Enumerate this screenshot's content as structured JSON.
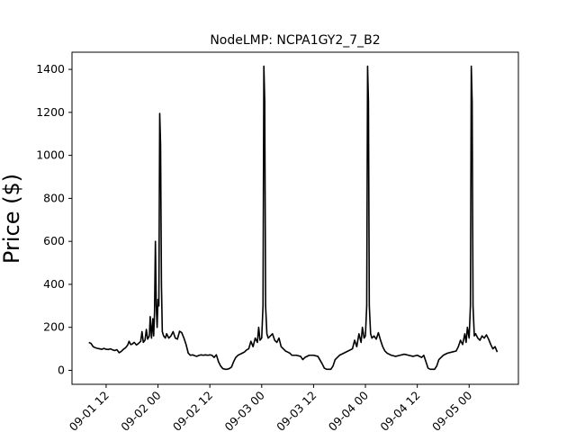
{
  "chart_data": {
    "type": "line",
    "title": "NodeLMP: NCPA1GY2_7_B2",
    "xlabel": "",
    "ylabel": "Price ($)",
    "ylim": [
      -65,
      1480
    ],
    "yticks": [
      0,
      200,
      400,
      600,
      800,
      1000,
      1200,
      1400
    ],
    "xticks": [
      {
        "t": 12,
        "label": "09-01 12"
      },
      {
        "t": 24,
        "label": "09-02 00"
      },
      {
        "t": 36,
        "label": "09-02 12"
      },
      {
        "t": 48,
        "label": "09-03 00"
      },
      {
        "t": 60,
        "label": "09-03 12"
      },
      {
        "t": 72,
        "label": "09-04 00"
      },
      {
        "t": 84,
        "label": "09-04 12"
      },
      {
        "t": 96,
        "label": "09-05 00"
      }
    ],
    "xlim": [
      4.1,
      107.4
    ],
    "line_color": "#000000",
    "grid": false,
    "series": [
      {
        "name": "",
        "points": [
          [
            8.0,
            130
          ],
          [
            8.5,
            125
          ],
          [
            9.0,
            110
          ],
          [
            9.5,
            105
          ],
          [
            10.0,
            102
          ],
          [
            10.5,
            100
          ],
          [
            11.0,
            98
          ],
          [
            11.5,
            102
          ],
          [
            12.0,
            98
          ],
          [
            12.5,
            97
          ],
          [
            13.0,
            100
          ],
          [
            13.5,
            95
          ],
          [
            14.0,
            92
          ],
          [
            14.5,
            96
          ],
          [
            15.0,
            82
          ],
          [
            15.5,
            88
          ],
          [
            16.0,
            98
          ],
          [
            16.5,
            105
          ],
          [
            17.0,
            118
          ],
          [
            17.3,
            135
          ],
          [
            17.7,
            120
          ],
          [
            18.0,
            122
          ],
          [
            18.5,
            130
          ],
          [
            19.0,
            118
          ],
          [
            19.5,
            125
          ],
          [
            20.0,
            135
          ],
          [
            20.3,
            180
          ],
          [
            20.6,
            130
          ],
          [
            21.0,
            140
          ],
          [
            21.3,
            190
          ],
          [
            21.6,
            145
          ],
          [
            22.0,
            160
          ],
          [
            22.2,
            250
          ],
          [
            22.5,
            150
          ],
          [
            22.8,
            240
          ],
          [
            23.0,
            160
          ],
          [
            23.2,
            270
          ],
          [
            23.4,
            600
          ],
          [
            23.6,
            300
          ],
          [
            23.8,
            200
          ],
          [
            24.0,
            330
          ],
          [
            24.2,
            300
          ],
          [
            24.4,
            1195
          ],
          [
            24.6,
            1050
          ],
          [
            24.8,
            400
          ],
          [
            25.0,
            180
          ],
          [
            25.3,
            160
          ],
          [
            25.7,
            150
          ],
          [
            26.0,
            170
          ],
          [
            26.5,
            150
          ],
          [
            27.0,
            160
          ],
          [
            27.5,
            180
          ],
          [
            28.0,
            150
          ],
          [
            28.5,
            145
          ],
          [
            29.0,
            182
          ],
          [
            29.5,
            175
          ],
          [
            30.0,
            150
          ],
          [
            30.5,
            120
          ],
          [
            31.0,
            80
          ],
          [
            31.5,
            70
          ],
          [
            32.0,
            72
          ],
          [
            32.5,
            68
          ],
          [
            33.0,
            65
          ],
          [
            33.5,
            70
          ],
          [
            34.0,
            72
          ],
          [
            34.5,
            70
          ],
          [
            35.0,
            72
          ],
          [
            35.5,
            70
          ],
          [
            36.0,
            72
          ],
          [
            36.5,
            70
          ],
          [
            37.0,
            60
          ],
          [
            37.5,
            72
          ],
          [
            38.0,
            40
          ],
          [
            38.5,
            20
          ],
          [
            39.0,
            8
          ],
          [
            39.5,
            5
          ],
          [
            40.0,
            5
          ],
          [
            40.5,
            8
          ],
          [
            41.0,
            15
          ],
          [
            41.5,
            40
          ],
          [
            42.0,
            60
          ],
          [
            42.5,
            70
          ],
          [
            43.0,
            75
          ],
          [
            43.5,
            80
          ],
          [
            44.0,
            85
          ],
          [
            44.5,
            95
          ],
          [
            45.0,
            100
          ],
          [
            45.5,
            135
          ],
          [
            46.0,
            110
          ],
          [
            46.5,
            150
          ],
          [
            47.0,
            130
          ],
          [
            47.3,
            200
          ],
          [
            47.6,
            140
          ],
          [
            48.0,
            150
          ],
          [
            48.3,
            300
          ],
          [
            48.5,
            1415
          ],
          [
            48.7,
            1250
          ],
          [
            48.9,
            300
          ],
          [
            49.2,
            170
          ],
          [
            49.5,
            150
          ],
          [
            50.0,
            160
          ],
          [
            50.5,
            170
          ],
          [
            51.0,
            140
          ],
          [
            51.5,
            130
          ],
          [
            52.0,
            150
          ],
          [
            52.5,
            110
          ],
          [
            53.0,
            100
          ],
          [
            53.5,
            90
          ],
          [
            54.0,
            85
          ],
          [
            54.5,
            80
          ],
          [
            55.0,
            70
          ],
          [
            56.0,
            70
          ],
          [
            57.0,
            65
          ],
          [
            57.5,
            50
          ],
          [
            58.0,
            60
          ],
          [
            59.0,
            70
          ],
          [
            60.0,
            70
          ],
          [
            61.0,
            65
          ],
          [
            62.0,
            30
          ],
          [
            62.5,
            10
          ],
          [
            63.0,
            5
          ],
          [
            64.0,
            5
          ],
          [
            64.5,
            20
          ],
          [
            65.0,
            50
          ],
          [
            65.5,
            60
          ],
          [
            66.0,
            70
          ],
          [
            67.0,
            80
          ],
          [
            68.0,
            90
          ],
          [
            69.0,
            100
          ],
          [
            69.5,
            140
          ],
          [
            70.0,
            110
          ],
          [
            70.5,
            170
          ],
          [
            71.0,
            130
          ],
          [
            71.3,
            200
          ],
          [
            71.7,
            150
          ],
          [
            72.0,
            160
          ],
          [
            72.3,
            300
          ],
          [
            72.5,
            1415
          ],
          [
            72.7,
            1250
          ],
          [
            72.9,
            300
          ],
          [
            73.2,
            170
          ],
          [
            73.5,
            150
          ],
          [
            74.0,
            160
          ],
          [
            74.5,
            145
          ],
          [
            75.0,
            175
          ],
          [
            75.5,
            140
          ],
          [
            76.0,
            110
          ],
          [
            76.5,
            90
          ],
          [
            77.0,
            80
          ],
          [
            77.5,
            75
          ],
          [
            78.0,
            70
          ],
          [
            79.0,
            65
          ],
          [
            80.0,
            70
          ],
          [
            81.0,
            75
          ],
          [
            82.0,
            70
          ],
          [
            83.0,
            65
          ],
          [
            84.0,
            70
          ],
          [
            85.0,
            60
          ],
          [
            85.5,
            70
          ],
          [
            86.0,
            40
          ],
          [
            86.5,
            10
          ],
          [
            87.0,
            5
          ],
          [
            88.0,
            5
          ],
          [
            88.5,
            20
          ],
          [
            89.0,
            50
          ],
          [
            89.5,
            60
          ],
          [
            90.0,
            70
          ],
          [
            91.0,
            80
          ],
          [
            92.0,
            85
          ],
          [
            93.0,
            90
          ],
          [
            93.5,
            110
          ],
          [
            94.0,
            140
          ],
          [
            94.5,
            120
          ],
          [
            95.0,
            170
          ],
          [
            95.3,
            130
          ],
          [
            95.6,
            200
          ],
          [
            96.0,
            150
          ],
          [
            96.3,
            300
          ],
          [
            96.5,
            1415
          ],
          [
            96.7,
            1250
          ],
          [
            96.9,
            300
          ],
          [
            97.2,
            160
          ],
          [
            97.5,
            170
          ],
          [
            98.0,
            150
          ],
          [
            98.5,
            140
          ],
          [
            99.0,
            160
          ],
          [
            99.5,
            150
          ],
          [
            100.0,
            165
          ],
          [
            100.5,
            145
          ],
          [
            101.0,
            120
          ],
          [
            101.5,
            100
          ],
          [
            102.0,
            110
          ],
          [
            102.5,
            85
          ]
        ]
      }
    ]
  }
}
